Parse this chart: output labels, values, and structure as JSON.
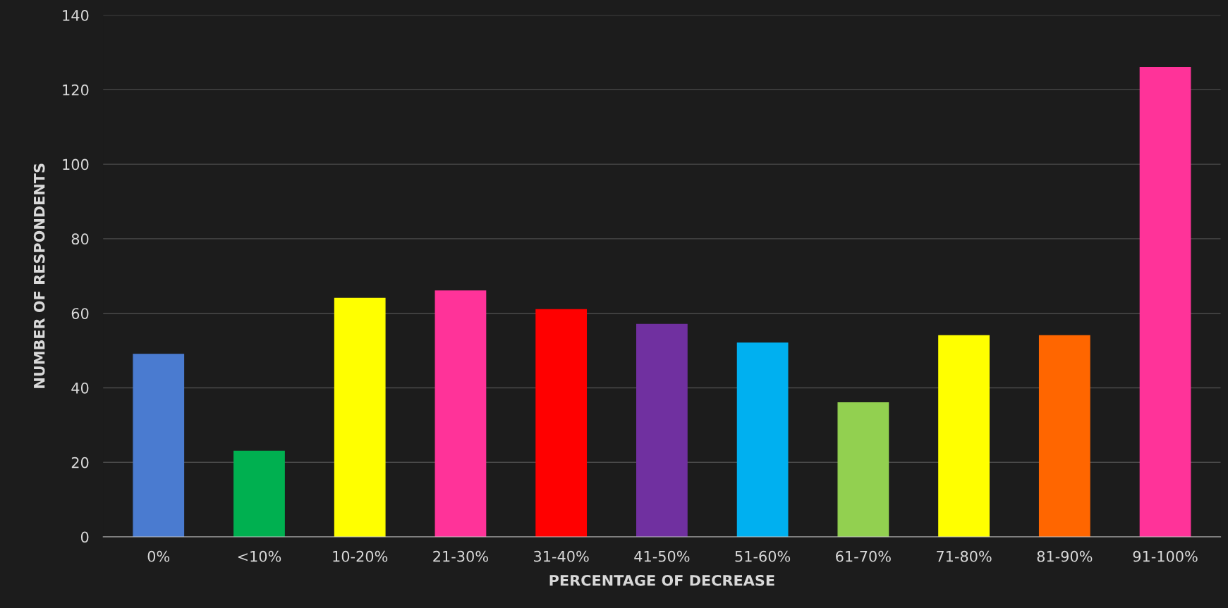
{
  "chart_data": {
    "type": "bar",
    "xlabel": "PERCENTAGE OF DECREASE",
    "ylabel": "NUMBER OF RESPONDENTS",
    "categories": [
      "0%",
      "<10%",
      "10-20%",
      "21-30%",
      "31-40%",
      "41-50%",
      "51-60%",
      "61-70%",
      "71-80%",
      "81-90%",
      "91-100%"
    ],
    "values": [
      49,
      23,
      64,
      66,
      61,
      57,
      52,
      36,
      54,
      54,
      126
    ],
    "colors": [
      "#4a7bd0",
      "#00b050",
      "#ffff00",
      "#ff3399",
      "#ff0000",
      "#7030a0",
      "#00b0f0",
      "#92d050",
      "#ffff00",
      "#ff6600",
      "#ff3399"
    ],
    "ylim": [
      0,
      140
    ],
    "yticks": [
      0,
      20,
      40,
      60,
      80,
      100,
      120,
      140
    ],
    "grid": "y",
    "legend": false
  }
}
